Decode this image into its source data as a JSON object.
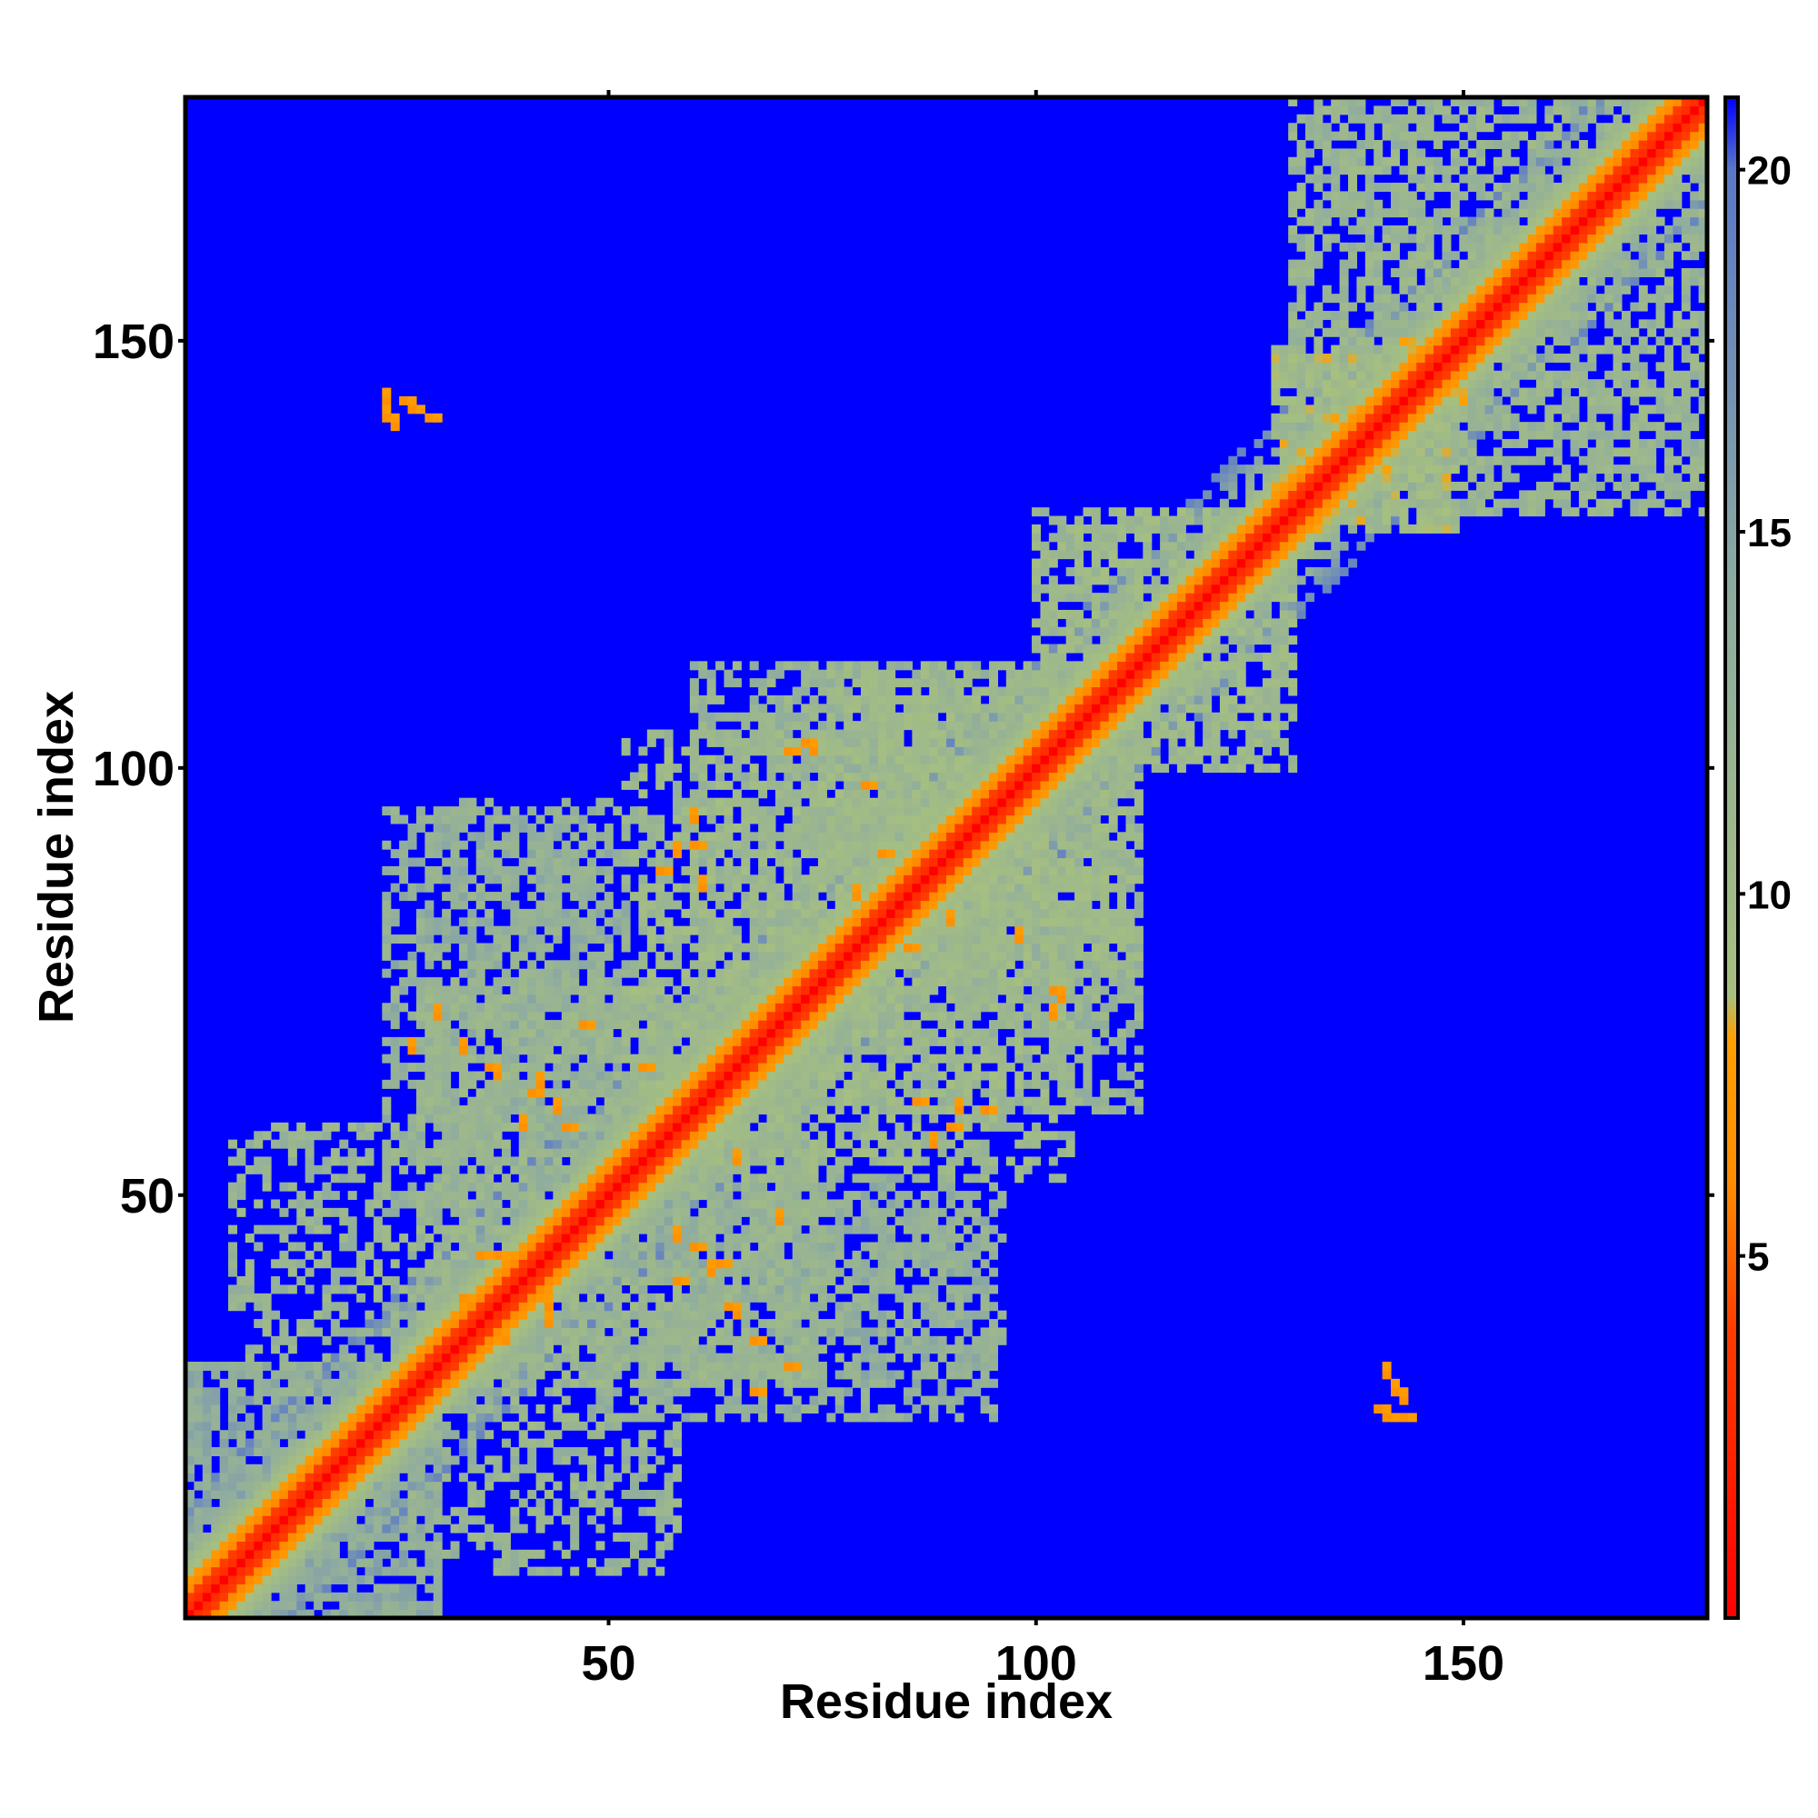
{
  "chart_data": {
    "type": "heatmap",
    "title": "",
    "xlabel": "Residue index",
    "ylabel": "Residue index",
    "x_range": [
      1,
      178
    ],
    "y_range": [
      1,
      178
    ],
    "x_ticks": [
      50,
      100,
      150
    ],
    "y_ticks": [
      50,
      100,
      150
    ],
    "x_tick_labels": [
      "50",
      "100",
      "150"
    ],
    "y_tick_labels": [
      "50",
      "100",
      "150"
    ],
    "colorbar": {
      "range": [
        0,
        21
      ],
      "ticks": [
        5,
        10,
        15,
        20
      ],
      "tick_labels": [
        "5",
        "10",
        "15",
        "20"
      ],
      "stops": [
        {
          "value": 0,
          "color": "#ff0000"
        },
        {
          "value": 4,
          "color": "#ff3c00"
        },
        {
          "value": 6,
          "color": "#ff8c00"
        },
        {
          "value": 8,
          "color": "#ffa000"
        },
        {
          "value": 8.6,
          "color": "#a7c07f"
        },
        {
          "value": 14,
          "color": "#8fac9f"
        },
        {
          "value": 20,
          "color": "#5a78c8"
        },
        {
          "value": 21,
          "color": "#0000ff"
        }
      ],
      "above_color": "#0000ff"
    },
    "description_of_values": "Pairwise residue distance map: symmetric about the diagonal; diagonal ~0 (red), near-diagonal band of 4-8 (orange) to 8-14 (grey-green), distant pairs above 21 (blue).",
    "regions": [
      {
        "x": [
          1,
          30
        ],
        "y": [
          1,
          30
        ],
        "value": 14
      },
      {
        "x": [
          27,
          58
        ],
        "y": [
          6,
          35
        ],
        "value": 12
      },
      {
        "x": [
          28,
          75
        ],
        "y": [
          28,
          75
        ],
        "value": 12
      },
      {
        "x": [
          48,
          95
        ],
        "y": [
          24,
          50
        ],
        "value": 13
      },
      {
        "x": [
          28,
          52
        ],
        "y": [
          58,
          96
        ],
        "value": 13
      },
      {
        "x": [
          52,
          92
        ],
        "y": [
          55,
          104
        ],
        "value": 11
      },
      {
        "x": [
          68,
          112
        ],
        "y": [
          60,
          110
        ],
        "value": 12
      },
      {
        "x": [
          75,
          112
        ],
        "y": [
          78,
          112
        ],
        "value": 11
      },
      {
        "x": [
          100,
          130
        ],
        "y": [
          100,
          130
        ],
        "value": 11
      },
      {
        "x": [
          128,
          150
        ],
        "y": [
          128,
          150
        ],
        "value": 10
      },
      {
        "x": [
          130,
          178
        ],
        "y": [
          130,
          178
        ],
        "value": 12
      }
    ],
    "contacts": [
      [
        73,
        103
      ],
      [
        71,
        102
      ],
      [
        60,
        91
      ],
      [
        56,
        88
      ],
      [
        85,
        79
      ],
      [
        102,
        74
      ],
      [
        94,
        60
      ],
      [
        86,
        61
      ],
      [
        90,
        58
      ],
      [
        55,
        54
      ],
      [
        60,
        44
      ],
      [
        63,
        42
      ],
      [
        45,
        58
      ],
      [
        41,
        62
      ],
      [
        36,
        65
      ],
      [
        47,
        70
      ],
      [
        64,
        37
      ],
      [
        67,
        33
      ],
      [
        71,
        30
      ],
      [
        37,
        43
      ],
      [
        35,
        43
      ],
      [
        33,
        38
      ],
      [
        58,
        40
      ],
      [
        54,
        65
      ],
      [
        82,
        90
      ],
      [
        80,
        98
      ],
      [
        67,
        27
      ],
      [
        26,
        143
      ],
      [
        27,
        142
      ],
      [
        29,
        141
      ],
      [
        140,
        25
      ],
      [
        141,
        24
      ],
      [
        143,
        24
      ],
      [
        106,
        106
      ],
      [
        103,
        103
      ],
      [
        89,
        88
      ]
    ],
    "legend": "colorbar-right"
  }
}
